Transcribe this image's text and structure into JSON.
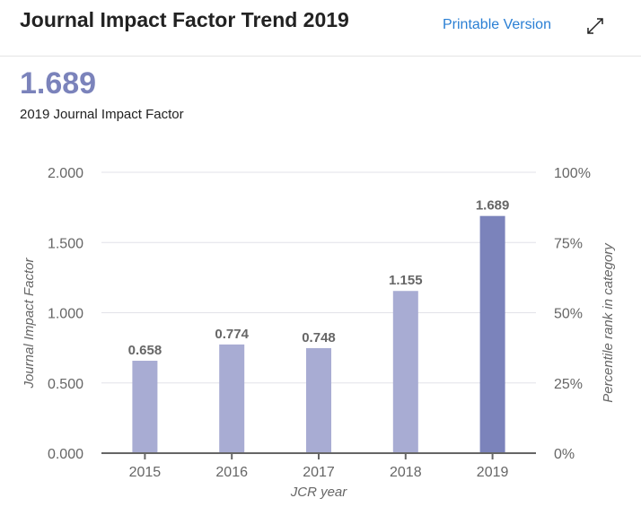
{
  "header": {
    "title": "Journal Impact Factor Trend 2019",
    "printable_label": "Printable Version",
    "expand_icon": "expand-arrows-icon"
  },
  "summary": {
    "value": "1.689",
    "label": "2019 Journal Impact Factor"
  },
  "colors": {
    "bar_default": "#a8acd3",
    "bar_highlight": "#7b83bb",
    "link": "#2a7fd4"
  },
  "chart_data": {
    "type": "bar",
    "title": "",
    "categories": [
      "2015",
      "2016",
      "2017",
      "2018",
      "2019"
    ],
    "values": [
      0.658,
      0.774,
      0.748,
      1.155,
      1.689
    ],
    "data_labels": [
      "0.658",
      "0.774",
      "0.748",
      "1.155",
      "1.689"
    ],
    "highlight_index": 4,
    "xlabel": "JCR year",
    "ylabel": "Journal Impact Factor",
    "ylabel_right": "Percentile rank in category",
    "ylim": [
      0,
      2
    ],
    "yticks": [
      "0.000",
      "0.500",
      "1.000",
      "1.500",
      "2.000"
    ],
    "yticks_right": [
      "0%",
      "25%",
      "50%",
      "75%",
      "100%"
    ],
    "grid": true,
    "legend": "none"
  }
}
